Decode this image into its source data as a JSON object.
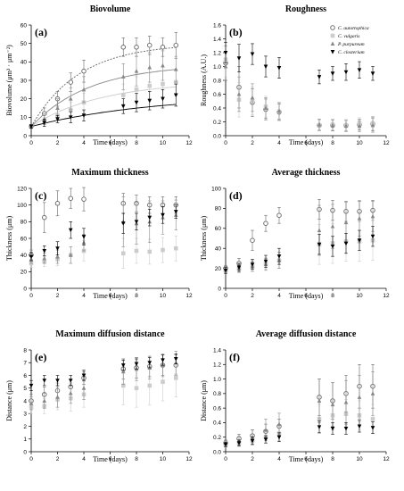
{
  "legend": {
    "entries": [
      {
        "name": "C. autotrophica",
        "marker": "open-circle",
        "color": "#666666"
      },
      {
        "name": "C. vulgaris",
        "marker": "square",
        "color": "#cccccc"
      },
      {
        "name": "P. purpureum",
        "marker": "triangle-up",
        "color": "#888888"
      },
      {
        "name": "C. closterium",
        "marker": "triangle-down",
        "color": "#000000"
      }
    ]
  },
  "chart_data": [
    {
      "type": "scatter",
      "label": "(a)",
      "title": "Biovolume",
      "xlabel": "Time (days)",
      "ylabel": "Biovolume (μm³ · μm⁻²)",
      "xlim": [
        0,
        12
      ],
      "ylim": [
        0,
        60
      ],
      "xticks": [
        0,
        2,
        4,
        6,
        8,
        10,
        12
      ],
      "yticks": [
        0,
        10,
        20,
        30,
        40,
        50,
        60
      ],
      "fit_curves": true,
      "x": [
        0,
        1,
        2,
        3,
        4,
        7,
        8,
        9,
        10,
        11
      ],
      "series": [
        {
          "name": "C. autotrophica",
          "values": [
            5,
            12,
            20,
            29,
            35,
            48,
            48,
            49,
            48,
            49
          ],
          "err": [
            1,
            3,
            4,
            5,
            6,
            5,
            5,
            5,
            5,
            7
          ]
        },
        {
          "name": "C. vulgaris",
          "values": [
            5,
            8,
            11,
            14,
            18,
            22,
            25,
            27,
            28,
            29
          ],
          "err": [
            1,
            2,
            3,
            4,
            5,
            6,
            7,
            7,
            7,
            7
          ]
        },
        {
          "name": "P. purpureum",
          "values": [
            5,
            9,
            15,
            20,
            25,
            32,
            35,
            37,
            38,
            36
          ],
          "err": [
            1,
            3,
            5,
            6,
            7,
            7,
            8,
            8,
            8,
            7
          ]
        },
        {
          "name": "C. closterium",
          "values": [
            5,
            7,
            9,
            10,
            11,
            16,
            18,
            19,
            20,
            22
          ],
          "err": [
            1,
            2,
            2,
            3,
            3,
            4,
            5,
            5,
            5,
            6
          ]
        }
      ]
    },
    {
      "type": "scatter",
      "label": "(b)",
      "title": "Roughness",
      "xlabel": "Time (days)",
      "ylabel": "Roughness (A.U.)",
      "xlim": [
        0,
        12
      ],
      "ylim": [
        0,
        1.6
      ],
      "xticks": [
        0,
        2,
        4,
        6,
        8,
        10,
        12
      ],
      "yticks": [
        0.0,
        0.2,
        0.4,
        0.6,
        0.8,
        1.0,
        1.2,
        1.4,
        1.6
      ],
      "x": [
        0,
        1,
        2,
        3,
        4,
        7,
        8,
        9,
        10,
        11
      ],
      "series": [
        {
          "name": "C. autotrophica",
          "values": [
            1.05,
            0.7,
            0.48,
            0.38,
            0.34,
            0.15,
            0.15,
            0.15,
            0.16,
            0.17
          ],
          "err": [
            0.25,
            0.3,
            0.2,
            0.15,
            0.12,
            0.08,
            0.08,
            0.08,
            0.08,
            0.1
          ]
        },
        {
          "name": "C. vulgaris",
          "values": [
            1.1,
            0.52,
            0.5,
            0.42,
            0.35,
            0.15,
            0.16,
            0.15,
            0.18,
            0.18
          ],
          "err": [
            0.25,
            0.25,
            0.2,
            0.15,
            0.12,
            0.08,
            0.08,
            0.08,
            0.08,
            0.1
          ]
        },
        {
          "name": "P. purpureum",
          "values": [
            1.0,
            0.6,
            0.55,
            0.4,
            0.36,
            0.16,
            0.15,
            0.14,
            0.14,
            0.15
          ],
          "err": [
            0.2,
            0.25,
            0.2,
            0.15,
            0.12,
            0.08,
            0.08,
            0.08,
            0.08,
            0.1
          ]
        },
        {
          "name": "C. closterium",
          "values": [
            1.2,
            1.12,
            1.18,
            1.0,
            0.98,
            0.85,
            0.9,
            0.92,
            0.95,
            0.9
          ],
          "err": [
            0.15,
            0.2,
            0.15,
            0.15,
            0.15,
            0.1,
            0.1,
            0.12,
            0.12,
            0.1
          ]
        }
      ]
    },
    {
      "type": "scatter",
      "label": "(c)",
      "title": "Maximum thickness",
      "xlabel": "Time (days)",
      "ylabel": "Thickness (μm)",
      "xlim": [
        0,
        12
      ],
      "ylim": [
        0,
        120
      ],
      "xticks": [
        0,
        2,
        4,
        6,
        8,
        10,
        12
      ],
      "yticks": [
        0,
        20,
        40,
        60,
        80,
        100,
        120
      ],
      "x": [
        0,
        1,
        2,
        3,
        4,
        7,
        8,
        9,
        10,
        11
      ],
      "series": [
        {
          "name": "C. autotrophica",
          "values": [
            40,
            85,
            102,
            108,
            107,
            102,
            102,
            100,
            100,
            100
          ],
          "err": [
            6,
            18,
            15,
            12,
            14,
            12,
            10,
            10,
            10,
            10
          ]
        },
        {
          "name": "C. vulgaris",
          "values": [
            30,
            32,
            35,
            40,
            45,
            42,
            45,
            44,
            46,
            48
          ],
          "err": [
            5,
            6,
            8,
            10,
            12,
            18,
            15,
            15,
            15,
            15
          ]
        },
        {
          "name": "P. purpureum",
          "values": [
            35,
            36,
            38,
            40,
            55,
            80,
            78,
            80,
            85,
            88
          ],
          "err": [
            5,
            6,
            8,
            10,
            10,
            30,
            25,
            25,
            20,
            18
          ]
        },
        {
          "name": "C. closterium",
          "values": [
            38,
            45,
            48,
            70,
            62,
            78,
            80,
            85,
            88,
            92
          ],
          "err": [
            5,
            6,
            8,
            10,
            10,
            12,
            10,
            10,
            10,
            8
          ]
        }
      ]
    },
    {
      "type": "scatter",
      "label": "(d)",
      "title": "Average thickness",
      "xlabel": "Time (days)",
      "ylabel": "Thickness (μm)",
      "xlim": [
        0,
        12
      ],
      "ylim": [
        0,
        100
      ],
      "xticks": [
        0,
        2,
        4,
        6,
        8,
        10,
        12
      ],
      "yticks": [
        0,
        20,
        40,
        60,
        80,
        100
      ],
      "x": [
        0,
        1,
        2,
        3,
        4,
        7,
        8,
        9,
        10,
        11
      ],
      "series": [
        {
          "name": "C. autotrophica",
          "values": [
            20,
            25,
            48,
            65,
            73,
            79,
            78,
            77,
            77,
            78
          ],
          "err": [
            3,
            5,
            10,
            8,
            8,
            10,
            10,
            10,
            10,
            10
          ]
        },
        {
          "name": "C. vulgaris",
          "values": [
            18,
            20,
            22,
            25,
            28,
            44,
            45,
            47,
            47,
            48
          ],
          "err": [
            3,
            4,
            5,
            6,
            8,
            20,
            20,
            20,
            20,
            20
          ]
        },
        {
          "name": "P. purpureum",
          "values": [
            19,
            20,
            22,
            24,
            28,
            58,
            62,
            66,
            70,
            72
          ],
          "err": [
            3,
            4,
            5,
            6,
            8,
            25,
            22,
            20,
            18,
            15
          ]
        },
        {
          "name": "C. closterium",
          "values": [
            18,
            21,
            24,
            27,
            32,
            44,
            42,
            45,
            48,
            52
          ],
          "err": [
            3,
            4,
            5,
            6,
            8,
            10,
            10,
            10,
            10,
            10
          ]
        }
      ]
    },
    {
      "type": "scatter",
      "label": "(e)",
      "title": "Maximum diffusion distance",
      "xlabel": "Time (days)",
      "ylabel": "Distance (μm)",
      "xlim": [
        0,
        12
      ],
      "ylim": [
        0,
        8
      ],
      "xticks": [
        0,
        2,
        4,
        6,
        8,
        10,
        12
      ],
      "yticks": [
        0,
        1,
        2,
        3,
        4,
        5,
        6,
        7,
        8
      ],
      "x": [
        0,
        1,
        2,
        3,
        4,
        7,
        8,
        9,
        10,
        11
      ],
      "series": [
        {
          "name": "C. autotrophica",
          "values": [
            4.0,
            4.5,
            4.8,
            5.1,
            5.8,
            6.5,
            6.6,
            6.7,
            6.8,
            6.8
          ],
          "err": [
            0.5,
            0.6,
            0.6,
            0.6,
            0.5,
            0.8,
            0.8,
            0.8,
            0.8,
            0.8
          ]
        },
        {
          "name": "C. vulgaris",
          "values": [
            3.5,
            3.6,
            4.1,
            4.2,
            4.5,
            5.2,
            5.0,
            5.2,
            5.5,
            5.8
          ],
          "err": [
            0.5,
            0.6,
            0.8,
            1.0,
            1.0,
            1.5,
            1.5,
            1.5,
            1.5,
            1.5
          ]
        },
        {
          "name": "P. purpureum",
          "values": [
            3.8,
            4.0,
            4.3,
            4.6,
            5.0,
            6.3,
            6.5,
            6.6,
            6.8,
            7.0
          ],
          "err": [
            0.5,
            0.6,
            0.8,
            0.8,
            0.9,
            1.0,
            0.9,
            0.9,
            0.9,
            0.9
          ]
        },
        {
          "name": "C. closterium",
          "values": [
            5.2,
            5.6,
            5.6,
            5.6,
            6.0,
            6.8,
            6.9,
            7.0,
            7.2,
            7.3
          ],
          "err": [
            0.4,
            0.4,
            0.4,
            0.4,
            0.4,
            0.4,
            0.4,
            0.4,
            0.4,
            0.4
          ]
        }
      ]
    },
    {
      "type": "scatter",
      "label": "(f)",
      "title": "Average diffusion distance",
      "xlabel": "Time (days)",
      "ylabel": "Distance (μm)",
      "xlim": [
        0,
        12
      ],
      "ylim": [
        0,
        1.4
      ],
      "xticks": [
        0,
        2,
        4,
        6,
        8,
        10,
        12
      ],
      "yticks": [
        0.0,
        0.2,
        0.4,
        0.6,
        0.8,
        1.0,
        1.2,
        1.4
      ],
      "x": [
        0,
        1,
        2,
        3,
        4,
        7,
        8,
        9,
        10,
        11
      ],
      "series": [
        {
          "name": "C. autotrophica",
          "values": [
            0.12,
            0.18,
            0.22,
            0.28,
            0.35,
            0.75,
            0.7,
            0.8,
            0.9,
            0.9
          ],
          "err": [
            0.04,
            0.06,
            0.08,
            0.1,
            0.1,
            0.25,
            0.25,
            0.25,
            0.3,
            0.3
          ]
        },
        {
          "name": "C. vulgaris",
          "values": [
            0.1,
            0.12,
            0.15,
            0.2,
            0.25,
            0.45,
            0.5,
            0.52,
            0.5,
            0.45
          ],
          "err": [
            0.04,
            0.05,
            0.06,
            0.08,
            0.1,
            0.2,
            0.2,
            0.2,
            0.2,
            0.2
          ]
        },
        {
          "name": "P. purpureum",
          "values": [
            0.11,
            0.15,
            0.2,
            0.3,
            0.38,
            0.7,
            0.65,
            0.68,
            0.75,
            0.8
          ],
          "err": [
            0.04,
            0.06,
            0.1,
            0.15,
            0.15,
            0.3,
            0.3,
            0.3,
            0.3,
            0.3
          ]
        },
        {
          "name": "C. closterium",
          "values": [
            0.1,
            0.12,
            0.15,
            0.17,
            0.2,
            0.34,
            0.32,
            0.32,
            0.35,
            0.33
          ],
          "err": [
            0.03,
            0.04,
            0.05,
            0.05,
            0.06,
            0.08,
            0.08,
            0.08,
            0.08,
            0.08
          ]
        }
      ]
    }
  ]
}
